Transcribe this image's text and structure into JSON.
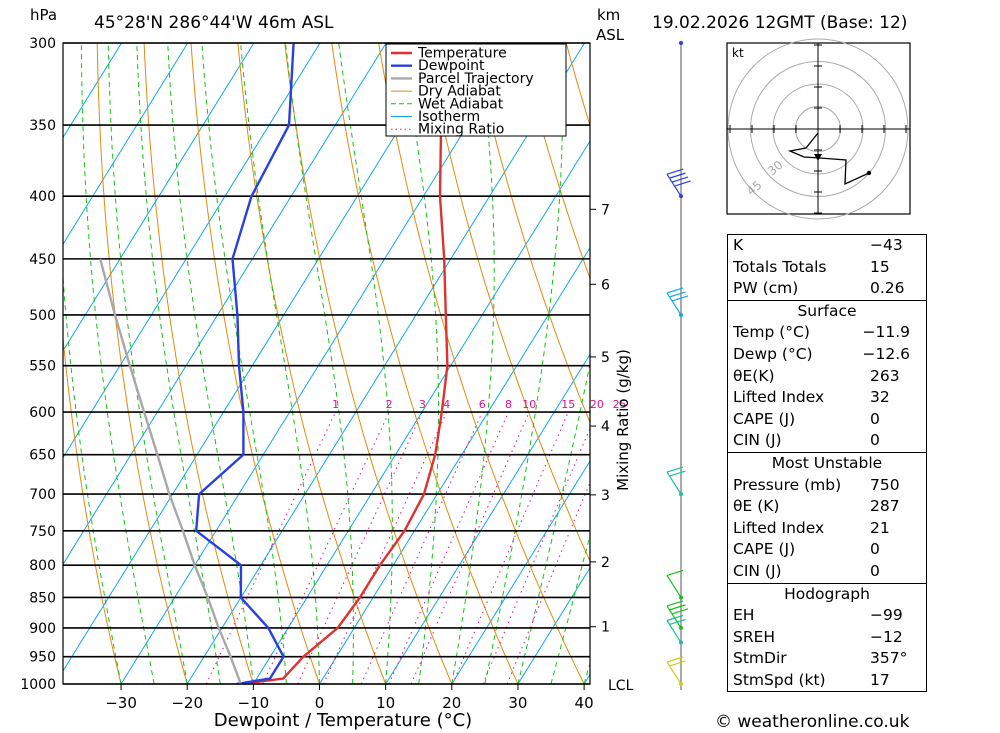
{
  "header": {
    "location": "45°28'N 286°44'W 46m ASL",
    "datetime": "19.02.2026 12GMT (Base: 12)",
    "pressure_unit": "hPa",
    "height_unit": "km",
    "height_ref": "ASL"
  },
  "legend": [
    "Temperature",
    "Dewpoint",
    "Parcel Trajectory",
    "Dry Adiabat",
    "Wet Adiabat",
    "Isotherm",
    "Mixing Ratio"
  ],
  "colors": {
    "temperature": "#e03030",
    "dewpoint": "#2a3fe0",
    "parcel": "#a8a8a8",
    "dry_adiabat": "#e08a10",
    "wet_adiabat": "#18c018",
    "isotherm": "#10a8e8",
    "mixing_ratio": "#e0108a"
  },
  "chart_data": {
    "type": "line",
    "title": "45°28'N 286°44'W 46m ASL",
    "xlabel": "Dewpoint / Temperature (°C)",
    "ylabel": "hPa",
    "x_ticks": [
      -30,
      -20,
      -10,
      0,
      10,
      20,
      30,
      40
    ],
    "pressure_levels": [
      300,
      350,
      400,
      450,
      500,
      550,
      600,
      650,
      700,
      750,
      800,
      850,
      900,
      950,
      1000
    ],
    "km_ticks": [
      {
        "label": "1",
        "p": 898
      },
      {
        "label": "2",
        "p": 795
      },
      {
        "label": "3",
        "p": 701
      },
      {
        "label": "4",
        "p": 616
      },
      {
        "label": "5",
        "p": 541
      },
      {
        "label": "6",
        "p": 472
      },
      {
        "label": "7",
        "p": 410
      }
    ],
    "lcl_label": "LCL",
    "lcl_p": 1000,
    "mixing_ratio_label": "Mixing Ratio (g/kg)",
    "mixing_ratio_values": [
      "1",
      "2",
      "3",
      "4",
      "6",
      "8",
      "10",
      "15",
      "20",
      "25"
    ],
    "series": [
      {
        "name": "Temperature",
        "points": [
          {
            "p": 1000,
            "t": -11.9
          },
          {
            "p": 990,
            "t": -6
          },
          {
            "p": 950,
            "t": -5
          },
          {
            "p": 900,
            "t": -2.5
          },
          {
            "p": 850,
            "t": -2
          },
          {
            "p": 800,
            "t": -2
          },
          {
            "p": 750,
            "t": -1.5
          },
          {
            "p": 700,
            "t": -2
          },
          {
            "p": 650,
            "t": -4
          },
          {
            "p": 600,
            "t": -7
          },
          {
            "p": 550,
            "t": -10.5
          },
          {
            "p": 500,
            "t": -15.5
          },
          {
            "p": 450,
            "t": -21
          },
          {
            "p": 400,
            "t": -27.5
          },
          {
            "p": 350,
            "t": -34
          },
          {
            "p": 300,
            "t": -42
          }
        ]
      },
      {
        "name": "Dewpoint",
        "points": [
          {
            "p": 1000,
            "t": -12.6
          },
          {
            "p": 990,
            "t": -8
          },
          {
            "p": 950,
            "t": -8
          },
          {
            "p": 900,
            "t": -13
          },
          {
            "p": 850,
            "t": -20
          },
          {
            "p": 800,
            "t": -23
          },
          {
            "p": 750,
            "t": -33
          },
          {
            "p": 700,
            "t": -36
          },
          {
            "p": 650,
            "t": -33
          },
          {
            "p": 600,
            "t": -37
          },
          {
            "p": 550,
            "t": -42
          },
          {
            "p": 500,
            "t": -47
          },
          {
            "p": 450,
            "t": -53
          },
          {
            "p": 400,
            "t": -56
          },
          {
            "p": 350,
            "t": -57
          },
          {
            "p": 300,
            "t": -64
          }
        ]
      },
      {
        "name": "Parcel Trajectory",
        "points": [
          {
            "p": 1000,
            "t": -11.9
          },
          {
            "p": 950,
            "t": -16
          },
          {
            "p": 900,
            "t": -20.5
          },
          {
            "p": 850,
            "t": -25
          },
          {
            "p": 800,
            "t": -30
          },
          {
            "p": 750,
            "t": -35
          },
          {
            "p": 700,
            "t": -40.5
          },
          {
            "p": 650,
            "t": -46
          },
          {
            "p": 600,
            "t": -52
          },
          {
            "p": 550,
            "t": -58.5
          },
          {
            "p": 500,
            "t": -65.5
          },
          {
            "p": 450,
            "t": -73
          }
        ]
      }
    ]
  },
  "hodograph": {
    "unit": "kt",
    "ring_labels": [
      "30",
      "45"
    ]
  },
  "stats": {
    "general": [
      {
        "label": "K",
        "value": "-43"
      },
      {
        "label": "Totals Totals",
        "value": "15"
      },
      {
        "label": "PW (cm)",
        "value": "0.26"
      }
    ],
    "surface": {
      "title": "Surface",
      "rows": [
        {
          "label": "Temp (°C)",
          "value": "-11.9"
        },
        {
          "label": "Dewp (°C)",
          "value": "-12.6"
        },
        {
          "label": "θE(K)",
          "value": "263"
        },
        {
          "label": "Lifted Index",
          "value": "32"
        },
        {
          "label": "CAPE (J)",
          "value": "0"
        },
        {
          "label": "CIN (J)",
          "value": "0"
        }
      ]
    },
    "most_unstable": {
      "title": "Most Unstable",
      "rows": [
        {
          "label": "Pressure (mb)",
          "value": "750"
        },
        {
          "label": "θE (K)",
          "value": "287"
        },
        {
          "label": "Lifted Index",
          "value": "21"
        },
        {
          "label": "CAPE (J)",
          "value": "0"
        },
        {
          "label": "CIN (J)",
          "value": "0"
        }
      ]
    },
    "hodograph": {
      "title": "Hodograph",
      "rows": [
        {
          "label": "EH",
          "value": "-99"
        },
        {
          "label": "SREH",
          "value": "-12"
        },
        {
          "label": "StmDir",
          "value": "357°"
        },
        {
          "label": "StmSpd (kt)",
          "value": "17"
        }
      ]
    }
  },
  "copyright": "© weatheronline.co.uk"
}
